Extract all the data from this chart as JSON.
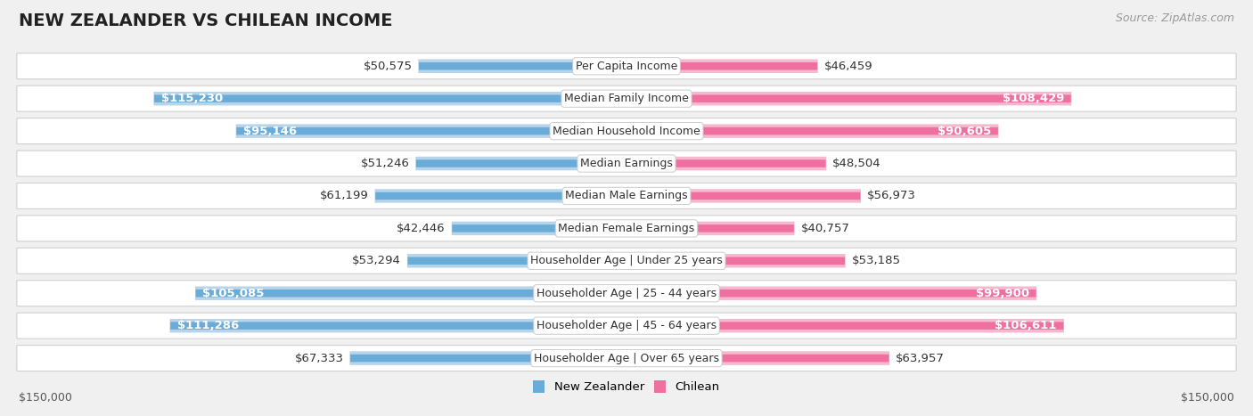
{
  "title": "NEW ZEALANDER VS CHILEAN INCOME",
  "source": "Source: ZipAtlas.com",
  "categories": [
    "Per Capita Income",
    "Median Family Income",
    "Median Household Income",
    "Median Earnings",
    "Median Male Earnings",
    "Median Female Earnings",
    "Householder Age | Under 25 years",
    "Householder Age | 25 - 44 years",
    "Householder Age | 45 - 64 years",
    "Householder Age | Over 65 years"
  ],
  "nz_values": [
    50575,
    115230,
    95146,
    51246,
    61199,
    42446,
    53294,
    105085,
    111286,
    67333
  ],
  "cl_values": [
    46459,
    108429,
    90605,
    48504,
    56973,
    40757,
    53185,
    99900,
    106611,
    63957
  ],
  "nz_labels": [
    "$50,575",
    "$115,230",
    "$95,146",
    "$51,246",
    "$61,199",
    "$42,446",
    "$53,294",
    "$105,085",
    "$111,286",
    "$67,333"
  ],
  "cl_labels": [
    "$46,459",
    "$108,429",
    "$90,605",
    "$48,504",
    "$56,973",
    "$40,757",
    "$53,185",
    "$99,900",
    "$106,611",
    "$63,957"
  ],
  "nz_color_light": "#b8d4ea",
  "nz_color_dark": "#6aacd8",
  "cl_color_light": "#f5b8cc",
  "cl_color_dark": "#ef6fa0",
  "nz_inside_threshold": 70000,
  "cl_inside_threshold": 70000,
  "max_value": 150000,
  "bg_color": "#f0f0f0",
  "row_bg_color": "#ffffff",
  "title_fontsize": 14,
  "source_fontsize": 9,
  "label_fontsize": 9.5,
  "cat_fontsize": 9,
  "axis_label": "$150,000",
  "legend_nz": "New Zealander",
  "legend_cl": "Chilean"
}
